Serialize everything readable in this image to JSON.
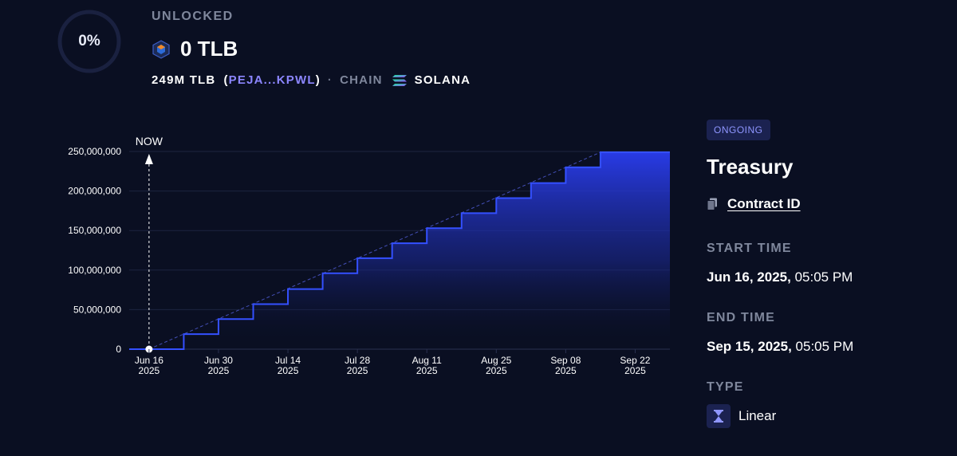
{
  "header": {
    "progress_percent": 0,
    "progress_label": "0%",
    "unlocked_label": "UNLOCKED",
    "token_icon": "token-cube-icon",
    "unlocked_amount": "0 TLB",
    "total_supply": "249M TLB",
    "paren_open": "(",
    "address_short": "PEJA...KPWL",
    "paren_close": ")",
    "separator": "·",
    "chain_label": "CHAIN",
    "chain_icon": "solana-icon",
    "chain_name": "SOLANA"
  },
  "colors": {
    "background": "#0a0f22",
    "accent": "#2f46ff",
    "ring_track": "#1a2140",
    "muted": "#7f879c",
    "link_purple": "#8c86ff"
  },
  "chart_data": {
    "type": "area",
    "step": true,
    "marker_label": "NOW",
    "marker_date": "2025-06-16",
    "y_ticks": [
      "0",
      "50,000,000",
      "100,000,000",
      "150,000,000",
      "200,000,000",
      "250,000,000"
    ],
    "y_tick_values": [
      0,
      50000000,
      100000000,
      150000000,
      200000000,
      250000000
    ],
    "ylim": [
      0,
      250000000
    ],
    "x_ticks": [
      {
        "month": "Jun 16",
        "year": "2025"
      },
      {
        "month": "Jun 30",
        "year": "2025"
      },
      {
        "month": "Jul 14",
        "year": "2025"
      },
      {
        "month": "Jul 28",
        "year": "2025"
      },
      {
        "month": "Aug 11",
        "year": "2025"
      },
      {
        "month": "Aug 25",
        "year": "2025"
      },
      {
        "month": "Sep 08",
        "year": "2025"
      },
      {
        "month": "Sep 22",
        "year": "2025"
      }
    ],
    "xlim": [
      "2025-06-12",
      "2025-09-29"
    ],
    "points": [
      {
        "x": "2025-06-12",
        "y": 0
      },
      {
        "x": "2025-06-23",
        "y": 19000000
      },
      {
        "x": "2025-06-30",
        "y": 38000000
      },
      {
        "x": "2025-07-07",
        "y": 57000000
      },
      {
        "x": "2025-07-14",
        "y": 76000000
      },
      {
        "x": "2025-07-21",
        "y": 96000000
      },
      {
        "x": "2025-07-28",
        "y": 115000000
      },
      {
        "x": "2025-08-04",
        "y": 134000000
      },
      {
        "x": "2025-08-11",
        "y": 153000000
      },
      {
        "x": "2025-08-18",
        "y": 172000000
      },
      {
        "x": "2025-08-25",
        "y": 191000000
      },
      {
        "x": "2025-09-01",
        "y": 210000000
      },
      {
        "x": "2025-09-08",
        "y": 230000000
      },
      {
        "x": "2025-09-15",
        "y": 249000000
      },
      {
        "x": "2025-09-29",
        "y": 249000000
      }
    ],
    "linear_reference": [
      {
        "x": "2025-06-16",
        "y": 0
      },
      {
        "x": "2025-09-15",
        "y": 249000000
      }
    ],
    "grid": true
  },
  "sidebar": {
    "status_badge": "ONGOING",
    "title": "Treasury",
    "copy_icon": "copy-icon",
    "contract_link": "Contract ID",
    "start_label": "START TIME",
    "start_date": "Jun 16, 2025,",
    "start_time": " 05:05 PM",
    "end_label": "END TIME",
    "end_date": "Sep 15, 2025,",
    "end_time": " 05:05 PM",
    "type_label": "TYPE",
    "type_icon": "hourglass-icon",
    "type_value": "Linear"
  }
}
